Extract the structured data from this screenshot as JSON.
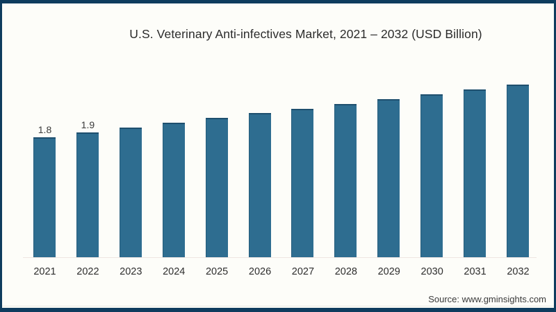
{
  "frame": {
    "border_color": "#0e3c5e",
    "background_color": "#fdfdf9"
  },
  "chart_data": {
    "type": "bar",
    "title": "U.S. Veterinary Anti-infectives Market, 2021 – 2032 (USD Billion)",
    "categories": [
      "2021",
      "2022",
      "2023",
      "2024",
      "2025",
      "2026",
      "2027",
      "2028",
      "2029",
      "2030",
      "2031",
      "2032"
    ],
    "values": [
      1.8,
      1.9,
      2.0,
      2.1,
      2.2,
      2.3,
      2.4,
      2.5,
      2.6,
      2.7,
      2.8,
      2.9
    ],
    "data_labels": {
      "2021": "1.8",
      "2022": "1.9"
    },
    "xlabel": "",
    "ylabel": "",
    "legend": "none",
    "grid": false,
    "bar_color": "#2e6d90",
    "bar_edge_color": "#1e4f6e",
    "axis_line_color": "#efe6e2"
  },
  "source": {
    "label": "Source: www.gminsights.com"
  }
}
